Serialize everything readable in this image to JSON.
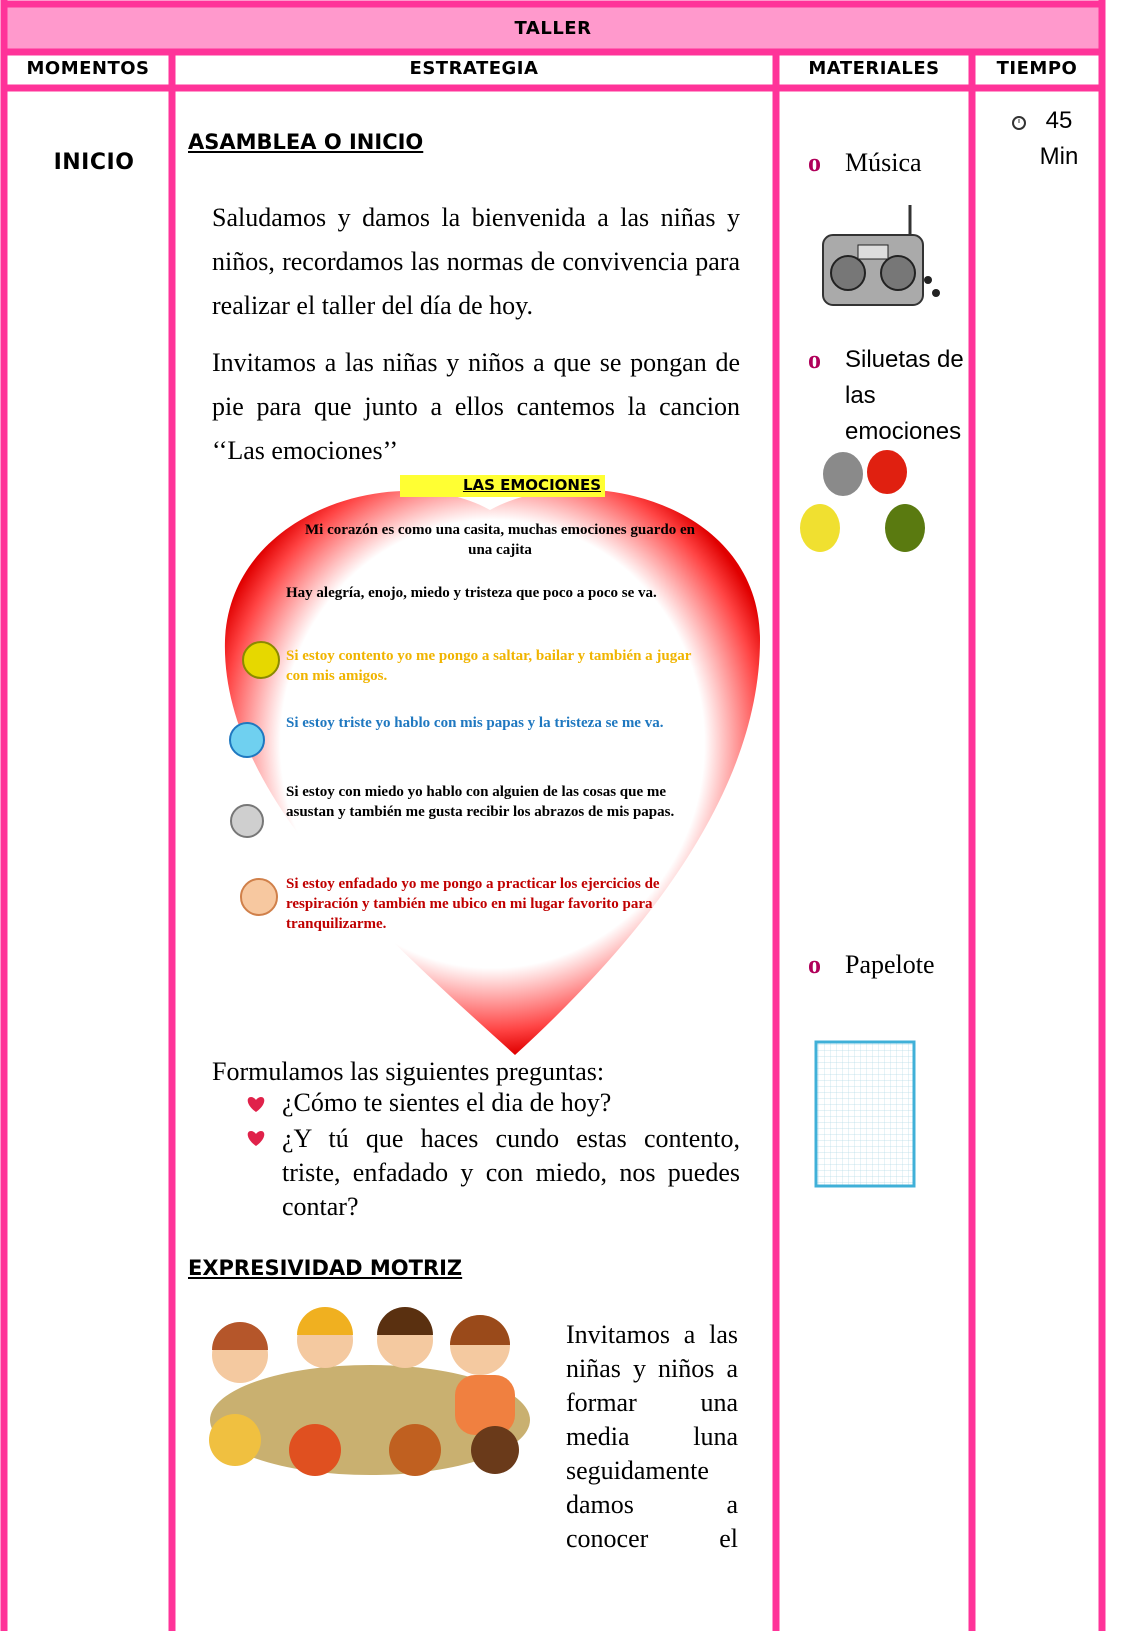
{
  "header": {
    "title": "TALLER",
    "columns": [
      "MOMENTOS",
      "ESTRATEGIA",
      "MATERIALES",
      "TIEMPO"
    ]
  },
  "moment": "INICIO",
  "strategy": {
    "section1_title": "ASAMBLEA O INICIO",
    "paragraphs": [
      "Saludamos y damos la bienvenida a las niñas y niños, recordamos las normas de convivencia para realizar el taller del día de hoy.",
      "Invitamos a las niñas y niños a que se pongan de pie para que junto a ellos cantemos la cancion ‘‘Las emociones’’"
    ],
    "song": {
      "title": "LAS EMOCIONES",
      "verses": [
        "Mi corazón es como una casita, muchas emociones guardo en una cajita",
        "Hay alegría, enojo, miedo y tristeza que poco a poco se va.",
        "Si estoy contento yo me pongo a saltar, bailar y también a jugar con mis amigos.",
        "Si estoy triste yo hablo con mis papas y la tristeza se me va.",
        "Si estoy con miedo yo hablo con alguien de las cosas que me asustan y también me gusta recibir los abrazos de mis papas.",
        "Si estoy enfadado yo me pongo a practicar los ejercicios de respiración y también me ubico en mi lugar favorito para tranquilizarme."
      ]
    },
    "questions_intro": "Formulamos las siguientes preguntas:",
    "questions": [
      "¿Cómo te sientes el dia de hoy?",
      "¿Y tú que haces cundo estas contento, triste, enfadado y con miedo, nos puedes contar?"
    ],
    "section2_title": "EXPRESIVIDAD MOTRIZ",
    "motriz_text": "Invitamos a las niñas y niños a formar una media luna seguidamente damos a conocer el"
  },
  "materials": [
    "Música",
    "Siluetas de las emociones",
    "Papelote"
  ],
  "time": "45 Min"
}
